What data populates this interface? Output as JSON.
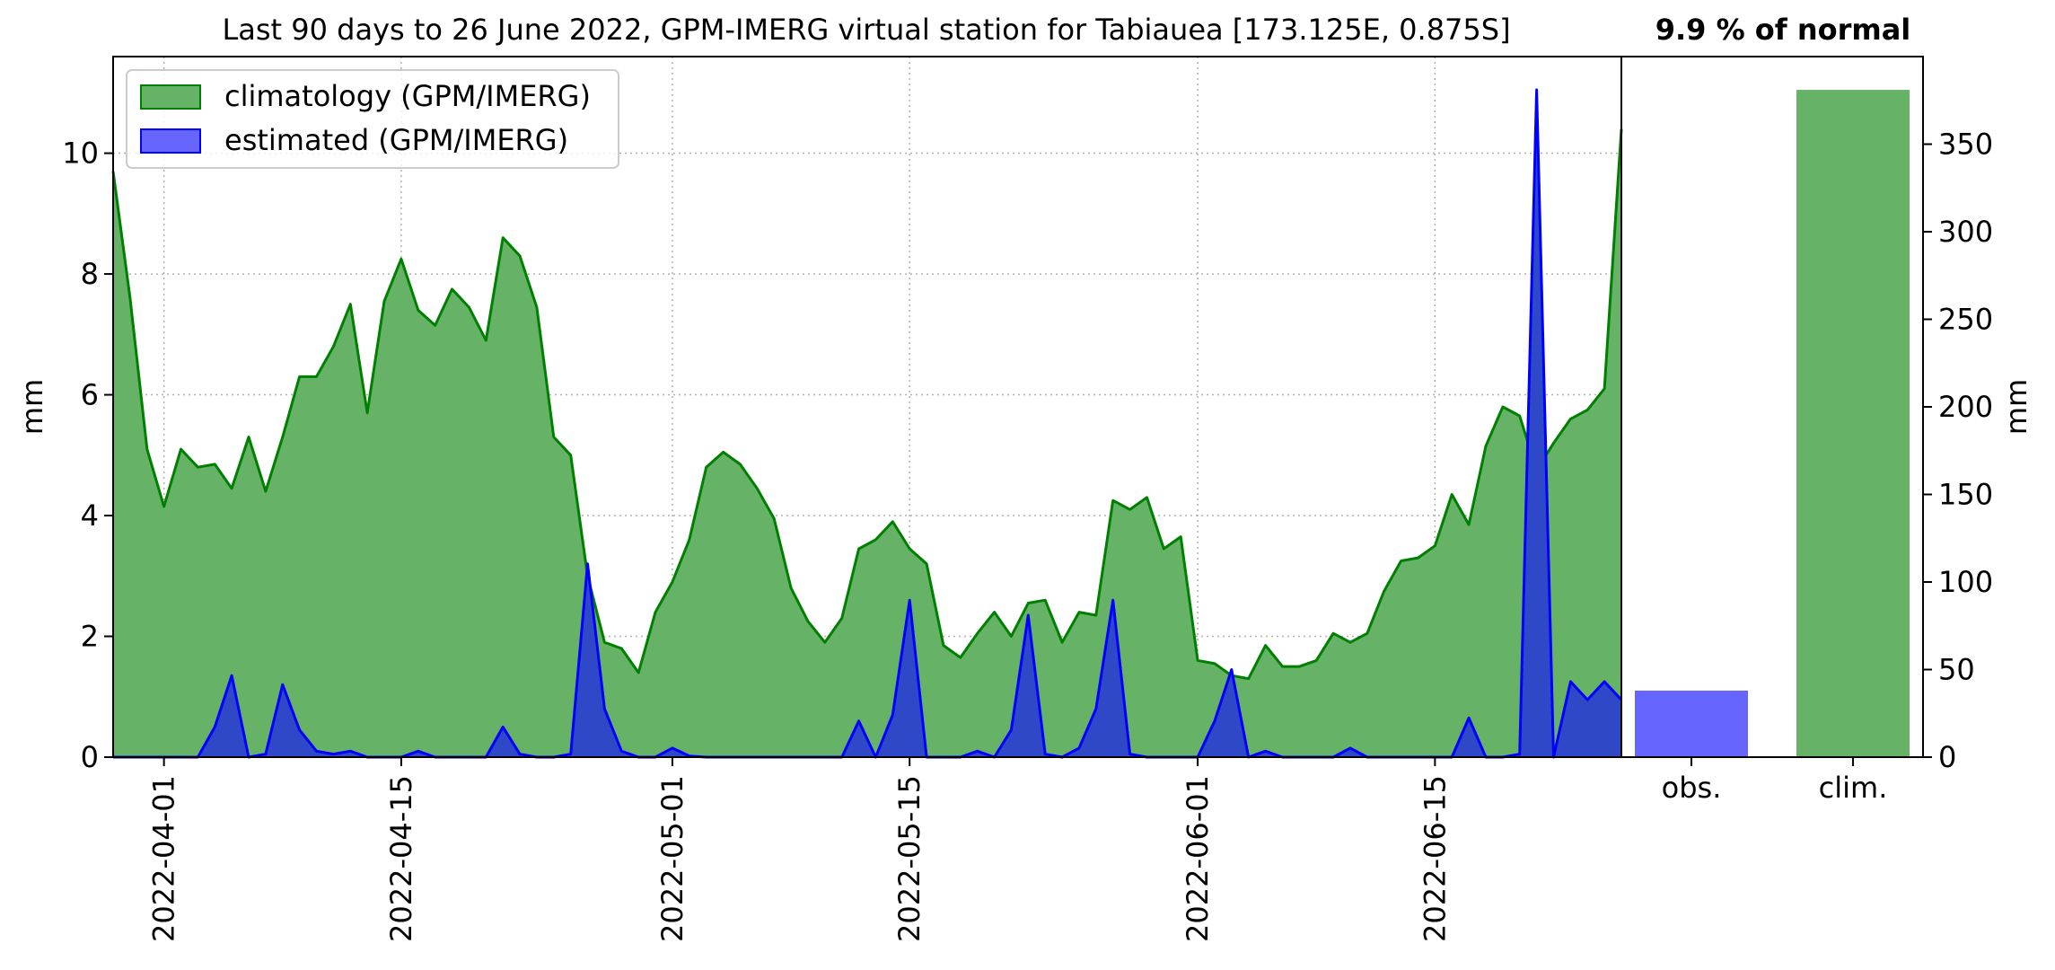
{
  "chart_data": [
    {
      "type": "area",
      "title": "Last 90 days to 26 June 2022, GPM-IMERG virtual station for Tabiauea [173.125E, 0.875S]",
      "xlabel": "",
      "ylabel": "mm",
      "x_start": "2022-03-29",
      "x_end": "2022-06-26",
      "xlim": [
        "2022-03-29",
        "2022-06-26"
      ],
      "ylim": [
        0,
        11.6
      ],
      "x_ticks": [
        "2022-04-01",
        "2022-04-15",
        "2022-05-01",
        "2022-05-15",
        "2022-06-01",
        "2022-06-15"
      ],
      "y_ticks": [
        0,
        2,
        4,
        6,
        8,
        10
      ],
      "grid": true,
      "legend_position": "top-left",
      "series": [
        {
          "name": "climatology (GPM/IMERG)",
          "color": "#008000",
          "fill": "#66b266",
          "values": [
            9.7,
            7.6,
            5.1,
            4.15,
            5.1,
            4.8,
            4.85,
            4.45,
            5.3,
            4.4,
            5.3,
            6.3,
            6.3,
            6.8,
            7.5,
            5.7,
            7.55,
            8.25,
            7.4,
            7.15,
            7.75,
            7.45,
            6.9,
            8.6,
            8.3,
            7.45,
            5.3,
            5.0,
            3.0,
            1.9,
            1.8,
            1.4,
            2.4,
            2.9,
            3.6,
            4.8,
            5.05,
            4.85,
            4.45,
            3.95,
            2.8,
            2.25,
            1.9,
            2.3,
            3.45,
            3.6,
            3.9,
            3.45,
            3.2,
            1.85,
            1.65,
            2.05,
            2.4,
            2.0,
            2.55,
            2.6,
            1.9,
            2.4,
            2.35,
            4.25,
            4.1,
            4.3,
            3.45,
            3.65,
            1.6,
            1.55,
            1.35,
            1.3,
            1.85,
            1.5,
            1.5,
            1.6,
            2.05,
            1.9,
            2.05,
            2.75,
            3.25,
            3.3,
            3.5,
            4.35,
            3.85,
            5.15,
            5.8,
            5.65,
            4.75,
            5.2,
            5.6,
            5.75,
            6.1,
            10.4
          ]
        },
        {
          "name": "estimated (GPM/IMERG)",
          "color": "#0000ff",
          "fill": "#2f48c8",
          "values": [
            0,
            0,
            0,
            0,
            0,
            0,
            0.5,
            1.35,
            0,
            0.05,
            1.2,
            0.45,
            0.1,
            0.05,
            0.1,
            0,
            0,
            0,
            0.1,
            0,
            0,
            0,
            0,
            0.5,
            0.05,
            0,
            0,
            0.05,
            3.2,
            0.8,
            0.1,
            0,
            0,
            0.15,
            0.02,
            0,
            0,
            0,
            0,
            0,
            0,
            0,
            0,
            0,
            0.6,
            0,
            0.7,
            2.6,
            0,
            0,
            0,
            0.1,
            0,
            0.45,
            2.35,
            0.05,
            0,
            0.15,
            0.8,
            2.6,
            0.05,
            0,
            0,
            0,
            0,
            0.6,
            1.45,
            0,
            0.1,
            0,
            0,
            0,
            0,
            0.15,
            0,
            0,
            0,
            0,
            0,
            0,
            0.65,
            0,
            0,
            0.05,
            11.05,
            0,
            1.25,
            0.95,
            1.25,
            0.95
          ]
        }
      ]
    },
    {
      "type": "bar",
      "title": "9.9 % of normal",
      "ylabel": "mm",
      "categories": [
        "obs.",
        "clim."
      ],
      "values": [
        38,
        381
      ],
      "colors": [
        "#6666ff",
        "#66b266"
      ],
      "ylim": [
        0,
        400
      ],
      "y_ticks": [
        0,
        50,
        100,
        150,
        200,
        250,
        300,
        350
      ]
    }
  ]
}
